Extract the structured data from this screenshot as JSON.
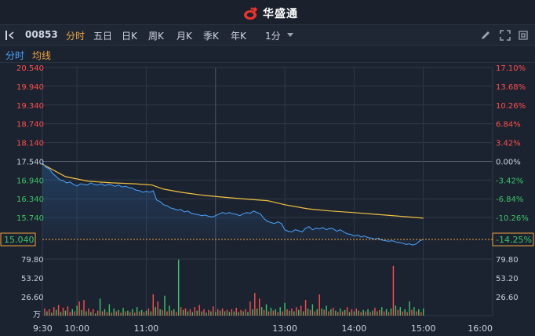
{
  "header": {
    "brand": "华盛通"
  },
  "toolbar": {
    "code": "00853",
    "tabs": [
      "分时",
      "五日",
      "日K",
      "周K",
      "月K",
      "季K",
      "年K"
    ],
    "active_tab": "分时",
    "period": "1分"
  },
  "legend": {
    "line": "分时",
    "avg": "均线"
  },
  "colors": {
    "up": "#ff4d4d",
    "down": "#3cc46a",
    "price_line": "#4aa3ff",
    "avg_line": "#f0c040",
    "accent": "#f0a441"
  },
  "chart_data": {
    "type": "line",
    "price_axis": [
      "20.540",
      "19.940",
      "19.340",
      "18.740",
      "18.140",
      "17.540",
      "16.940",
      "16.340",
      "15.740"
    ],
    "pct_axis": [
      "17.10%",
      "13.68%",
      "10.26%",
      "6.84%",
      "3.42%",
      "0.00%",
      "-3.42%",
      "-6.84%",
      "-10.26%"
    ],
    "current_price": "15.040",
    "current_pct": "-14.25%",
    "prev_close": 17.54,
    "ylim": [
      15.04,
      20.54
    ],
    "volume_axis": [
      "79.80",
      "53.20",
      "26.60"
    ],
    "volume_unit": "万",
    "volume_max": 79.8,
    "x_labels": [
      "9:30",
      "10:00",
      "11:00",
      "13:00",
      "14:00",
      "15:00",
      "16:00"
    ],
    "price_series": [
      [
        0,
        17.5
      ],
      [
        3,
        17.35
      ],
      [
        6,
        17.3
      ],
      [
        9,
        17.15
      ],
      [
        12,
        17.05
      ],
      [
        15,
        16.95
      ],
      [
        18,
        16.92
      ],
      [
        21,
        16.85
      ],
      [
        24,
        16.88
      ],
      [
        27,
        16.8
      ],
      [
        30,
        16.75
      ],
      [
        33,
        16.82
      ],
      [
        36,
        16.8
      ],
      [
        39,
        16.78
      ],
      [
        42,
        16.85
      ],
      [
        45,
        16.8
      ],
      [
        48,
        16.78
      ],
      [
        51,
        16.82
      ],
      [
        54,
        16.76
      ],
      [
        57,
        16.8
      ],
      [
        60,
        16.78
      ],
      [
        63,
        16.74
      ],
      [
        66,
        16.78
      ],
      [
        69,
        16.72
      ],
      [
        72,
        16.74
      ],
      [
        75,
        16.7
      ],
      [
        78,
        16.68
      ],
      [
        81,
        16.62
      ],
      [
        84,
        16.6
      ],
      [
        87,
        16.55
      ],
      [
        90,
        16.58
      ],
      [
        93,
        16.55
      ],
      [
        96,
        16.6
      ],
      [
        99,
        16.3
      ],
      [
        102,
        16.25
      ],
      [
        105,
        16.15
      ],
      [
        108,
        16.12
      ],
      [
        111,
        16.05
      ],
      [
        114,
        16.02
      ],
      [
        117,
        15.98
      ],
      [
        120,
        16.0
      ],
      [
        123,
        15.92
      ],
      [
        126,
        15.95
      ],
      [
        129,
        15.88
      ],
      [
        132,
        15.85
      ],
      [
        135,
        15.83
      ],
      [
        138,
        15.8
      ],
      [
        141,
        15.82
      ],
      [
        144,
        15.78
      ],
      [
        147,
        15.76
      ],
      [
        150,
        15.8
      ],
      [
        153,
        15.85
      ],
      [
        156,
        15.9
      ],
      [
        159,
        15.87
      ],
      [
        162,
        15.9
      ],
      [
        165,
        15.86
      ],
      [
        168,
        15.84
      ],
      [
        171,
        15.8
      ],
      [
        174,
        15.86
      ],
      [
        177,
        15.9
      ],
      [
        180,
        15.88
      ],
      [
        183,
        15.95
      ],
      [
        186,
        15.9
      ],
      [
        189,
        15.85
      ],
      [
        192,
        15.7
      ],
      [
        195,
        15.62
      ],
      [
        198,
        15.58
      ],
      [
        201,
        15.55
      ],
      [
        204,
        15.6
      ],
      [
        207,
        15.55
      ],
      [
        210,
        15.35
      ],
      [
        213,
        15.3
      ],
      [
        216,
        15.28
      ],
      [
        219,
        15.35
      ],
      [
        222,
        15.32
      ],
      [
        225,
        15.28
      ],
      [
        228,
        15.4
      ],
      [
        231,
        15.45
      ],
      [
        234,
        15.35
      ],
      [
        237,
        15.4
      ],
      [
        240,
        15.38
      ],
      [
        243,
        15.42
      ],
      [
        246,
        15.35
      ],
      [
        249,
        15.4
      ],
      [
        252,
        15.38
      ],
      [
        255,
        15.3
      ],
      [
        258,
        15.35
      ],
      [
        261,
        15.28
      ],
      [
        264,
        15.22
      ],
      [
        267,
        15.2
      ],
      [
        270,
        15.15
      ],
      [
        273,
        15.18
      ],
      [
        276,
        15.12
      ],
      [
        279,
        15.15
      ],
      [
        282,
        15.1
      ],
      [
        285,
        15.08
      ],
      [
        288,
        15.05
      ],
      [
        291,
        15.08
      ],
      [
        294,
        15.02
      ],
      [
        297,
        15.0
      ],
      [
        300,
        14.98
      ],
      [
        303,
        15.0
      ],
      [
        306,
        14.96
      ],
      [
        309,
        14.94
      ],
      [
        312,
        14.92
      ],
      [
        315,
        14.88
      ],
      [
        318,
        14.9
      ],
      [
        321,
        14.86
      ],
      [
        324,
        14.9
      ],
      [
        327,
        15.0
      ],
      [
        330,
        15.04
      ]
    ],
    "avg_series": [
      [
        0,
        17.45
      ],
      [
        20,
        17.05
      ],
      [
        40,
        16.9
      ],
      [
        60,
        16.85
      ],
      [
        80,
        16.82
      ],
      [
        95,
        16.78
      ],
      [
        105,
        16.65
      ],
      [
        120,
        16.55
      ],
      [
        140,
        16.45
      ],
      [
        160,
        16.38
      ],
      [
        180,
        16.32
      ],
      [
        195,
        16.28
      ],
      [
        210,
        16.15
      ],
      [
        230,
        16.02
      ],
      [
        250,
        15.95
      ],
      [
        270,
        15.9
      ],
      [
        290,
        15.84
      ],
      [
        310,
        15.78
      ],
      [
        330,
        15.72
      ]
    ],
    "volume_series": [
      [
        2,
        10,
        1
      ],
      [
        4,
        6,
        0
      ],
      [
        6,
        9,
        1
      ],
      [
        8,
        4,
        0
      ],
      [
        10,
        12,
        1
      ],
      [
        12,
        8,
        0
      ],
      [
        14,
        15,
        1
      ],
      [
        16,
        5,
        0
      ],
      [
        18,
        11,
        1
      ],
      [
        20,
        7,
        0
      ],
      [
        22,
        13,
        1
      ],
      [
        24,
        5,
        1
      ],
      [
        26,
        9,
        0
      ],
      [
        28,
        6,
        1
      ],
      [
        30,
        14,
        0
      ],
      [
        32,
        20,
        1
      ],
      [
        34,
        8,
        0
      ],
      [
        36,
        22,
        1
      ],
      [
        38,
        6,
        0
      ],
      [
        40,
        10,
        1
      ],
      [
        42,
        5,
        0
      ],
      [
        44,
        9,
        1
      ],
      [
        46,
        3,
        0
      ],
      [
        48,
        7,
        1
      ],
      [
        50,
        24,
        0
      ],
      [
        52,
        6,
        1
      ],
      [
        54,
        9,
        0
      ],
      [
        56,
        5,
        1
      ],
      [
        58,
        16,
        0
      ],
      [
        60,
        4,
        1
      ],
      [
        62,
        10,
        0
      ],
      [
        64,
        6,
        1
      ],
      [
        66,
        8,
        0
      ],
      [
        68,
        4,
        1
      ],
      [
        70,
        11,
        0
      ],
      [
        72,
        6,
        1
      ],
      [
        74,
        7,
        0
      ],
      [
        76,
        5,
        1
      ],
      [
        78,
        9,
        0
      ],
      [
        80,
        4,
        1
      ],
      [
        82,
        12,
        0
      ],
      [
        84,
        6,
        1
      ],
      [
        86,
        8,
        0
      ],
      [
        88,
        5,
        1
      ],
      [
        90,
        7,
        0
      ],
      [
        92,
        10,
        1
      ],
      [
        94,
        6,
        0
      ],
      [
        96,
        30,
        1
      ],
      [
        98,
        12,
        0
      ],
      [
        100,
        20,
        1
      ],
      [
        102,
        9,
        0
      ],
      [
        104,
        8,
        1
      ],
      [
        106,
        28,
        0
      ],
      [
        108,
        6,
        1
      ],
      [
        110,
        14,
        0
      ],
      [
        112,
        7,
        1
      ],
      [
        114,
        9,
        0
      ],
      [
        116,
        5,
        1
      ],
      [
        118,
        79,
        0
      ],
      [
        120,
        12,
        1
      ],
      [
        122,
        8,
        0
      ],
      [
        124,
        10,
        1
      ],
      [
        126,
        6,
        0
      ],
      [
        128,
        9,
        1
      ],
      [
        130,
        5,
        0
      ],
      [
        132,
        12,
        1
      ],
      [
        134,
        7,
        0
      ],
      [
        136,
        15,
        1
      ],
      [
        138,
        6,
        0
      ],
      [
        140,
        9,
        1
      ],
      [
        142,
        4,
        0
      ],
      [
        144,
        8,
        1
      ],
      [
        146,
        6,
        0
      ],
      [
        148,
        13,
        1
      ],
      [
        150,
        5,
        0
      ],
      [
        152,
        9,
        1
      ],
      [
        154,
        7,
        0
      ],
      [
        156,
        10,
        1
      ],
      [
        158,
        6,
        0
      ],
      [
        160,
        8,
        1
      ],
      [
        162,
        5,
        0
      ],
      [
        164,
        9,
        1
      ],
      [
        166,
        6,
        0
      ],
      [
        168,
        11,
        1
      ],
      [
        170,
        5,
        0
      ],
      [
        172,
        8,
        1
      ],
      [
        174,
        6,
        0
      ],
      [
        176,
        9,
        1
      ],
      [
        178,
        5,
        0
      ],
      [
        180,
        20,
        1
      ],
      [
        182,
        9,
        0
      ],
      [
        184,
        32,
        1
      ],
      [
        186,
        10,
        0
      ],
      [
        188,
        24,
        1
      ],
      [
        190,
        12,
        0
      ],
      [
        192,
        8,
        1
      ],
      [
        194,
        16,
        0
      ],
      [
        196,
        6,
        1
      ],
      [
        198,
        11,
        0
      ],
      [
        200,
        7,
        1
      ],
      [
        202,
        9,
        0
      ],
      [
        204,
        5,
        1
      ],
      [
        206,
        12,
        0
      ],
      [
        208,
        6,
        1
      ],
      [
        210,
        18,
        0
      ],
      [
        212,
        9,
        1
      ],
      [
        214,
        7,
        0
      ],
      [
        216,
        10,
        1
      ],
      [
        218,
        6,
        0
      ],
      [
        220,
        12,
        1
      ],
      [
        222,
        8,
        0
      ],
      [
        224,
        14,
        1
      ],
      [
        226,
        6,
        0
      ],
      [
        228,
        22,
        1
      ],
      [
        230,
        10,
        0
      ],
      [
        232,
        8,
        1
      ],
      [
        234,
        16,
        0
      ],
      [
        236,
        6,
        1
      ],
      [
        238,
        9,
        0
      ],
      [
        240,
        30,
        1
      ],
      [
        242,
        10,
        0
      ],
      [
        244,
        8,
        1
      ],
      [
        246,
        14,
        0
      ],
      [
        248,
        6,
        1
      ],
      [
        250,
        9,
        0
      ],
      [
        252,
        11,
        1
      ],
      [
        254,
        7,
        0
      ],
      [
        256,
        5,
        1
      ],
      [
        258,
        10,
        0
      ],
      [
        260,
        6,
        1
      ],
      [
        262,
        8,
        0
      ],
      [
        264,
        12,
        1
      ],
      [
        266,
        5,
        0
      ],
      [
        268,
        9,
        1
      ],
      [
        270,
        6,
        0
      ],
      [
        272,
        10,
        1
      ],
      [
        274,
        7,
        0
      ],
      [
        276,
        5,
        1
      ],
      [
        278,
        8,
        0
      ],
      [
        280,
        6,
        1
      ],
      [
        282,
        9,
        0
      ],
      [
        284,
        5,
        1
      ],
      [
        286,
        7,
        0
      ],
      [
        288,
        11,
        1
      ],
      [
        290,
        6,
        0
      ],
      [
        292,
        8,
        1
      ],
      [
        294,
        12,
        0
      ],
      [
        296,
        6,
        1
      ],
      [
        298,
        9,
        0
      ],
      [
        300,
        5,
        1
      ],
      [
        302,
        10,
        0
      ],
      [
        304,
        70,
        1
      ],
      [
        306,
        14,
        0
      ],
      [
        308,
        8,
        1
      ],
      [
        310,
        12,
        0
      ],
      [
        312,
        6,
        1
      ],
      [
        314,
        9,
        0
      ],
      [
        316,
        5,
        1
      ],
      [
        318,
        20,
        0
      ],
      [
        320,
        8,
        1
      ],
      [
        322,
        12,
        0
      ],
      [
        324,
        6,
        1
      ],
      [
        326,
        9,
        0
      ],
      [
        328,
        5,
        1
      ],
      [
        330,
        10,
        0
      ]
    ]
  }
}
